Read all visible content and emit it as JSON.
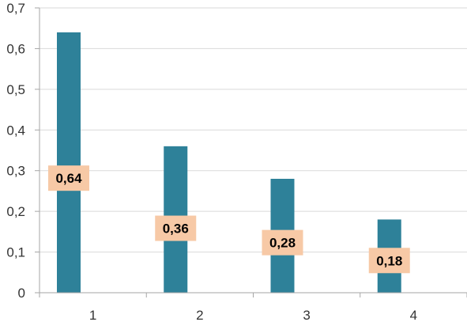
{
  "chart_data": {
    "type": "bar",
    "title": "",
    "xlabel": "",
    "ylabel": "",
    "categories": [
      "1",
      "2",
      "3",
      "4"
    ],
    "values": [
      0.64,
      0.36,
      0.28,
      0.18
    ],
    "data_labels": [
      "0,64",
      "0,36",
      "0,28",
      "0,18"
    ],
    "ylim": [
      0,
      0.7
    ],
    "y_ticks": [
      0,
      0.1,
      0.2,
      0.3,
      0.4,
      0.5,
      0.6,
      0.7
    ],
    "y_tick_labels": [
      "0",
      "0,1",
      "0,2",
      "0,3",
      "0,4",
      "0,5",
      "0,6",
      "0,7"
    ],
    "grid": "horizontal",
    "legend": "none",
    "colors": {
      "bar": "#2e8199",
      "data_label_bg": "#f7c9a6",
      "grid": "#d9d9d9",
      "axis": "#a6a6a6"
    }
  }
}
